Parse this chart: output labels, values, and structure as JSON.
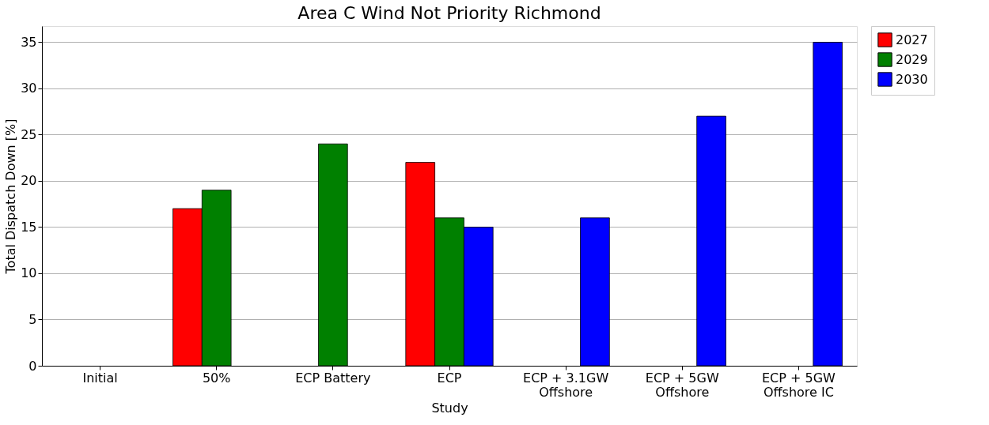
{
  "chart_data": {
    "type": "bar",
    "title": "Area C Wind Not Priority Richmond",
    "xlabel": "Study",
    "ylabel": "Total Dispatch Down [%]",
    "categories": [
      "Initial",
      "50%",
      "ECP Battery",
      "ECP",
      "ECP + 3.1GW\nOffshore",
      "ECP + 5GW\nOffshore",
      "ECP + 5GW\nOffshore IC"
    ],
    "series": [
      {
        "name": "2027",
        "color": "#ff0000",
        "values": [
          null,
          17,
          null,
          22,
          null,
          null,
          null
        ]
      },
      {
        "name": "2029",
        "color": "#008000",
        "values": [
          null,
          19,
          24,
          16,
          null,
          null,
          null
        ]
      },
      {
        "name": "2030",
        "color": "#0000ff",
        "values": [
          null,
          null,
          null,
          15,
          16,
          27,
          35
        ]
      }
    ],
    "ylim": [
      0,
      36.75
    ],
    "yticks": [
      0,
      5,
      10,
      15,
      20,
      25,
      30,
      35
    ],
    "grid": "y",
    "legend": "right"
  }
}
